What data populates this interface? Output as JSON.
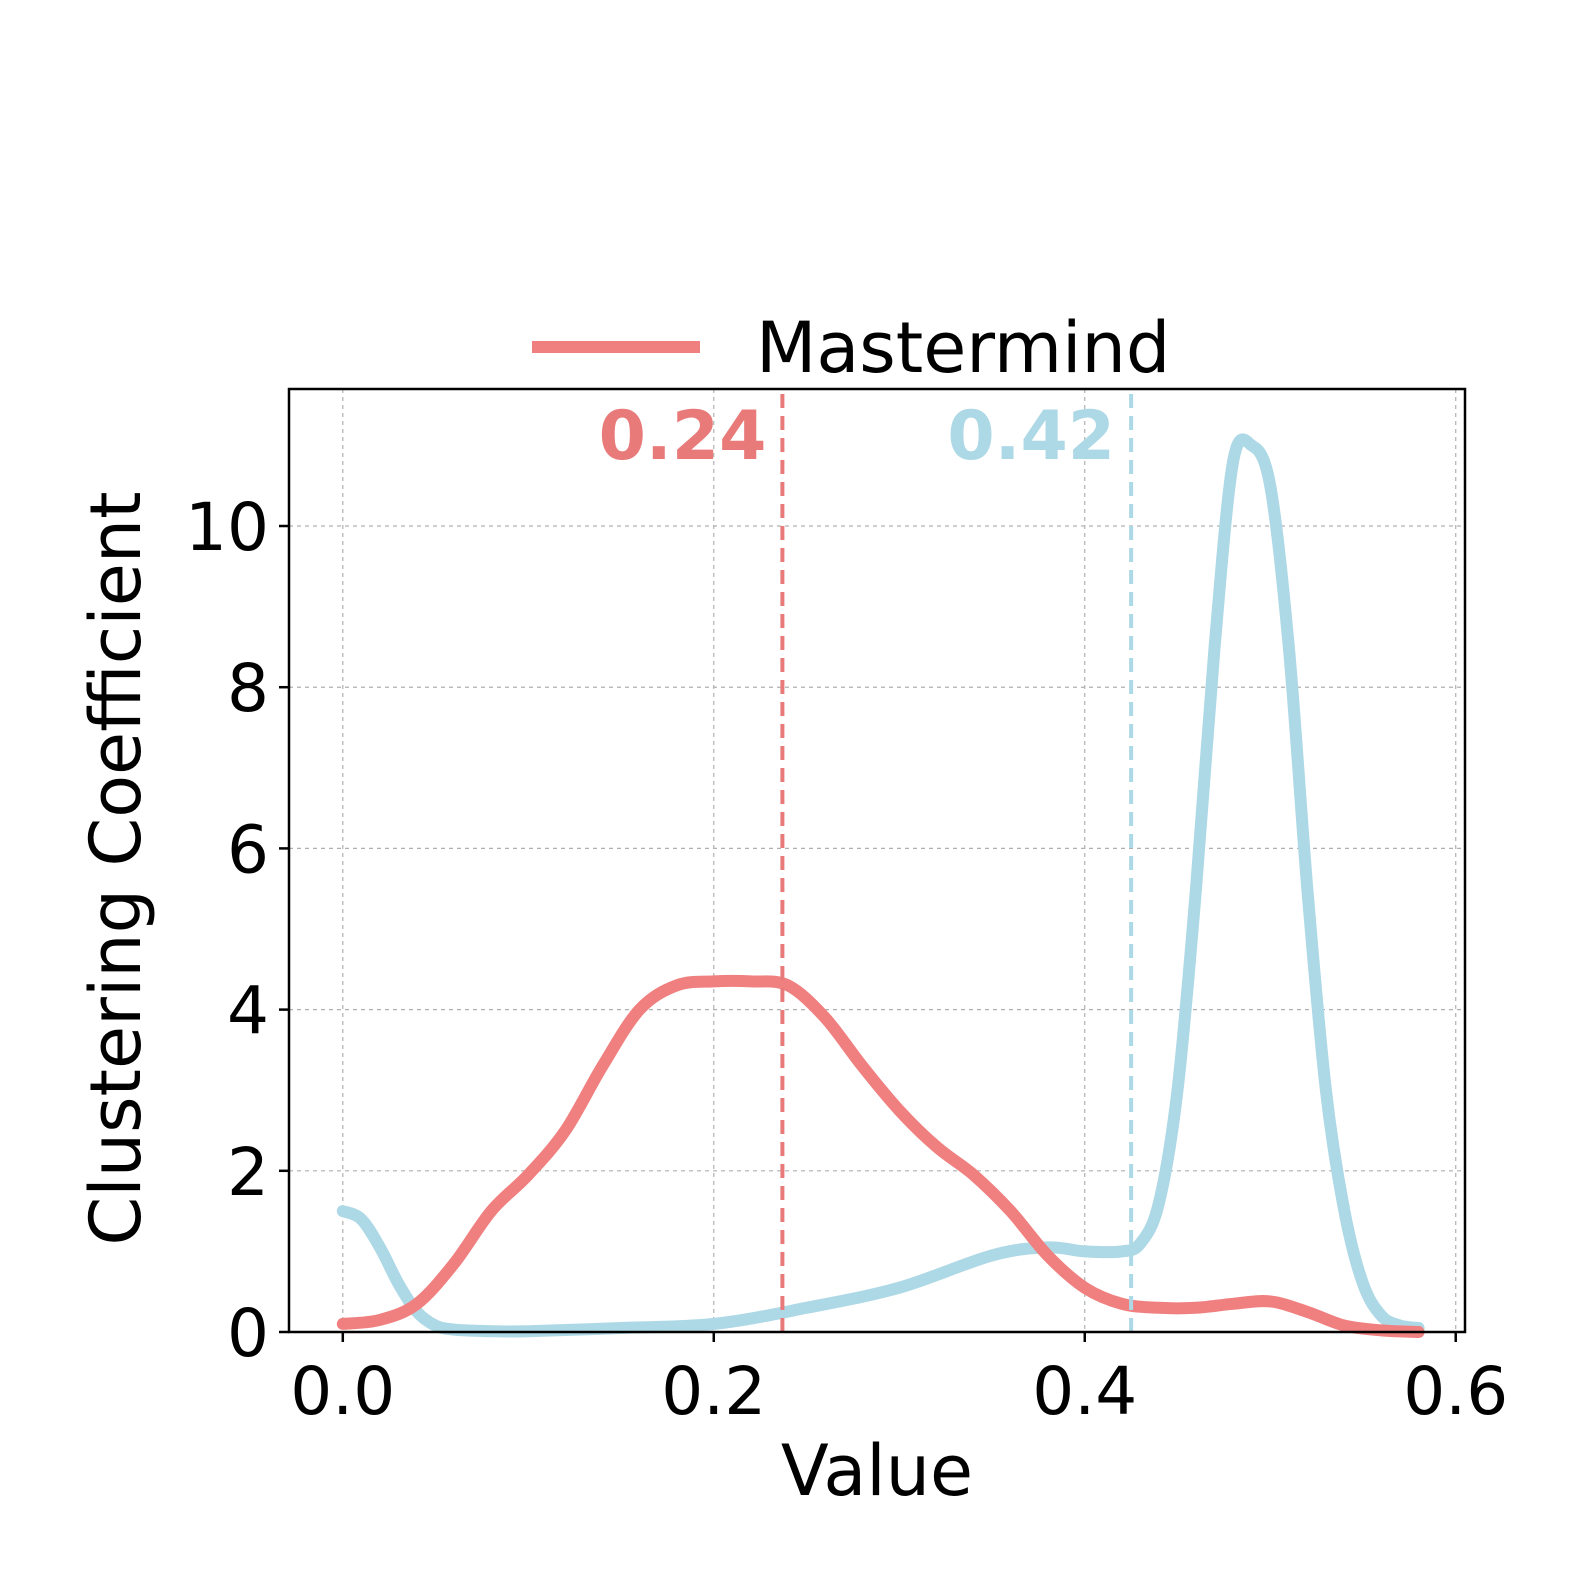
{
  "chart_data": {
    "type": "line",
    "xlabel": "Value",
    "ylabel": "Clustering Coefficient",
    "xlim": [
      -0.029,
      0.605
    ],
    "ylim": [
      0,
      11.7
    ],
    "xticks": [
      0.0,
      0.2,
      0.4,
      0.6
    ],
    "xtick_labels": [
      "0.0",
      "0.2",
      "0.4",
      "0.6"
    ],
    "yticks": [
      0,
      2,
      4,
      6,
      8,
      10
    ],
    "ytick_labels": [
      "0",
      "2",
      "4",
      "6",
      "8",
      "10"
    ],
    "grid": true,
    "legend": {
      "position": "top-center",
      "entries": [
        "Mastermind"
      ]
    },
    "series": [
      {
        "name": "Mastermind",
        "color": "#f08080",
        "x": [
          0.0,
          0.02,
          0.04,
          0.06,
          0.08,
          0.1,
          0.12,
          0.14,
          0.16,
          0.18,
          0.2,
          0.22,
          0.24,
          0.26,
          0.28,
          0.3,
          0.32,
          0.34,
          0.36,
          0.38,
          0.4,
          0.42,
          0.44,
          0.46,
          0.48,
          0.5,
          0.52,
          0.54,
          0.56,
          0.58
        ],
        "values": [
          0.1,
          0.15,
          0.35,
          0.85,
          1.5,
          1.95,
          2.5,
          3.3,
          4.0,
          4.3,
          4.35,
          4.35,
          4.3,
          3.9,
          3.3,
          2.75,
          2.3,
          1.95,
          1.5,
          0.95,
          0.55,
          0.35,
          0.3,
          0.3,
          0.35,
          0.38,
          0.25,
          0.08,
          0.02,
          0.0
        ]
      },
      {
        "name": "",
        "color": "#add8e6",
        "x": [
          0.0,
          0.01,
          0.02,
          0.03,
          0.04,
          0.05,
          0.06,
          0.08,
          0.1,
          0.15,
          0.2,
          0.25,
          0.3,
          0.35,
          0.38,
          0.4,
          0.42,
          0.43,
          0.44,
          0.45,
          0.46,
          0.47,
          0.48,
          0.49,
          0.5,
          0.51,
          0.52,
          0.53,
          0.54,
          0.55,
          0.56,
          0.57,
          0.58
        ],
        "values": [
          1.5,
          1.4,
          1.05,
          0.6,
          0.25,
          0.08,
          0.03,
          0.01,
          0.01,
          0.05,
          0.1,
          0.3,
          0.55,
          0.95,
          1.05,
          1.0,
          1.0,
          1.1,
          1.6,
          3.0,
          5.5,
          8.5,
          10.8,
          11.0,
          10.5,
          8.5,
          5.5,
          3.0,
          1.5,
          0.6,
          0.2,
          0.08,
          0.05
        ]
      }
    ],
    "mean_lines": [
      {
        "value": 0.237,
        "label": "0.24",
        "color": "#e87a7a"
      },
      {
        "value": 0.425,
        "label": "0.42",
        "color": "#add8e6"
      }
    ]
  }
}
